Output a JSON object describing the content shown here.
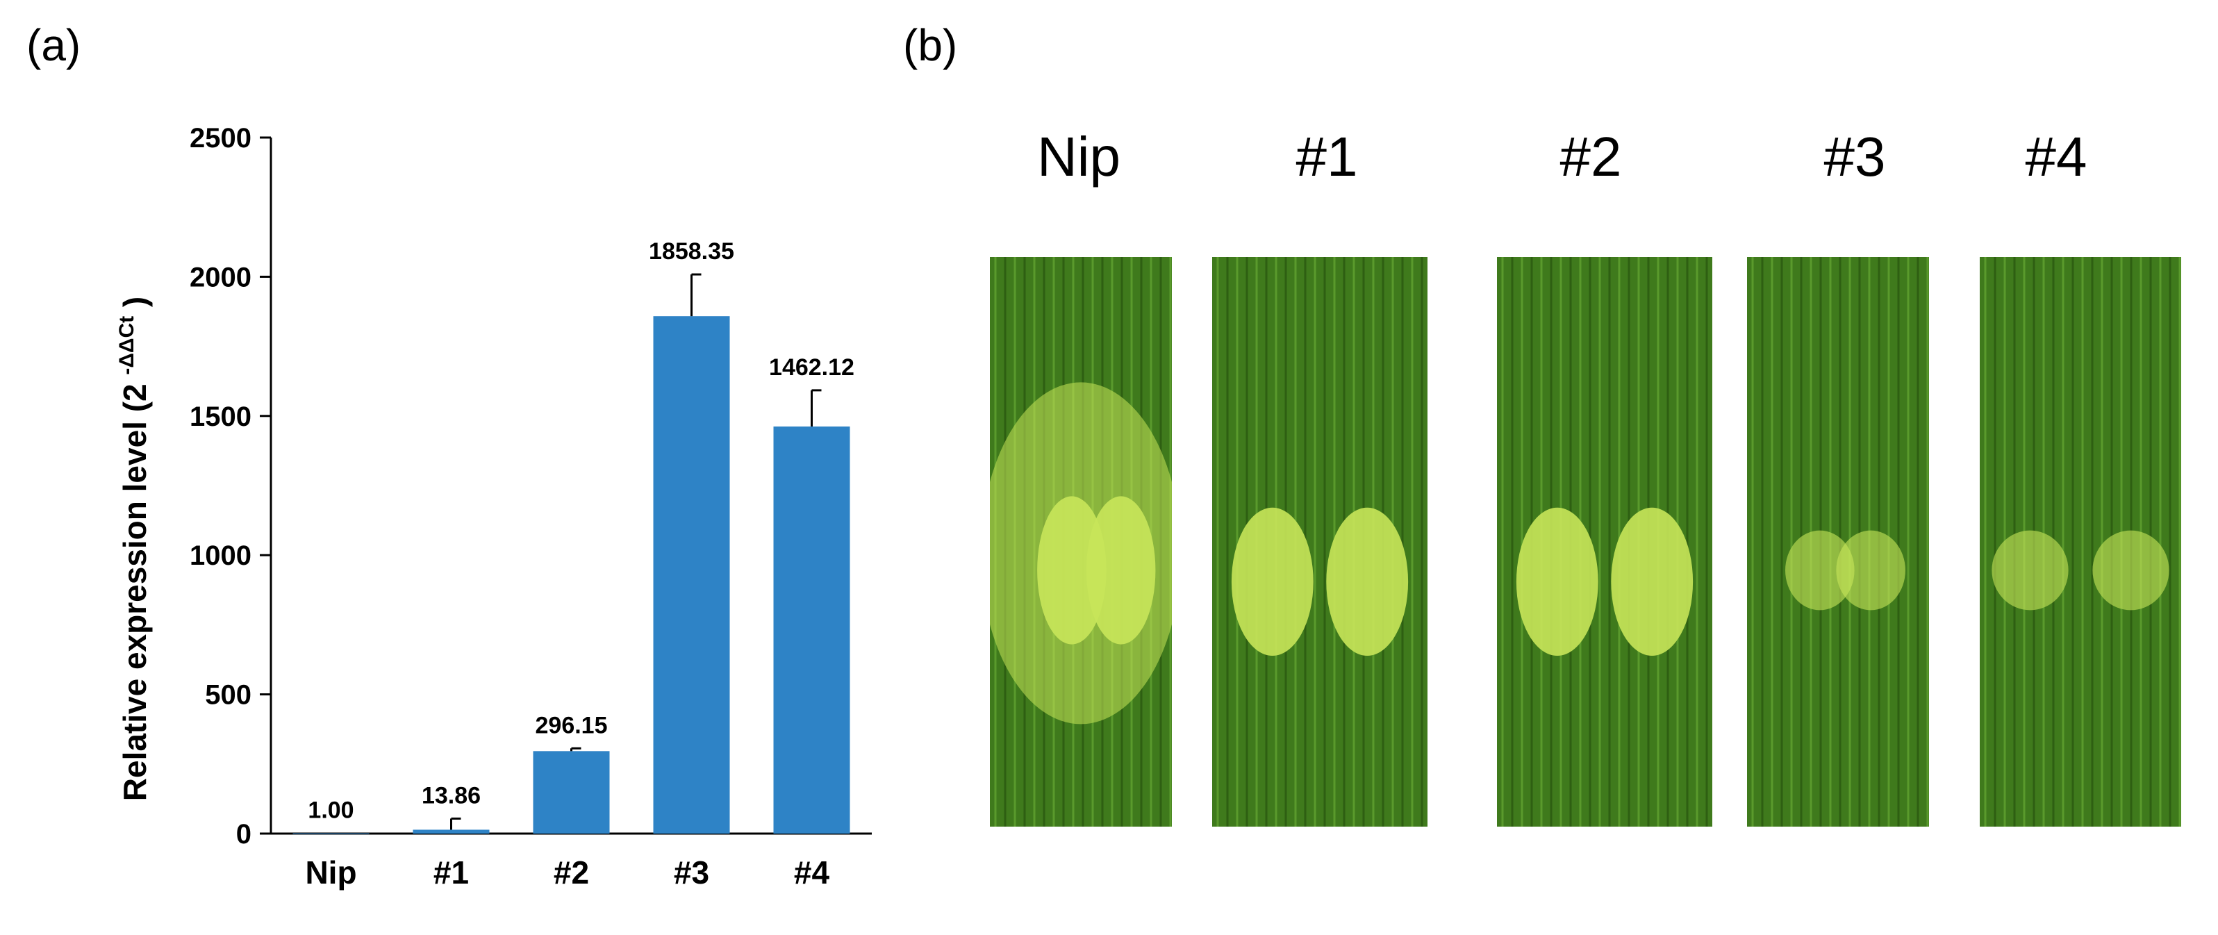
{
  "panels": {
    "a_label": "(a)",
    "b_label": "(b)"
  },
  "chart_data": {
    "type": "bar",
    "categories": [
      "Nip",
      "#1",
      "#2",
      "#3",
      "#4"
    ],
    "values": [
      1.0,
      13.86,
      296.15,
      1858.35,
      1462.12
    ],
    "errors": [
      0,
      40,
      10,
      150,
      130
    ],
    "data_labels": [
      "1.00",
      "13.86",
      "296.15",
      "1858.35",
      "1462.12"
    ],
    "title": "",
    "xlabel": "",
    "ylabel": "Relative expression level (2",
    "ylabel_superscript": "-ΔΔCt",
    "ylabel_close": ")",
    "ylim": [
      0,
      2500
    ],
    "yticks": [
      0,
      500,
      1000,
      1500,
      2000,
      2500
    ],
    "bar_color": "#2E83C6",
    "grid": false
  },
  "leaves": {
    "labels": [
      "Nip",
      "#1",
      "#2",
      "#3",
      "#4"
    ],
    "leaf_color": "#3f7a1c",
    "lesion_color": "#c8e65a"
  }
}
